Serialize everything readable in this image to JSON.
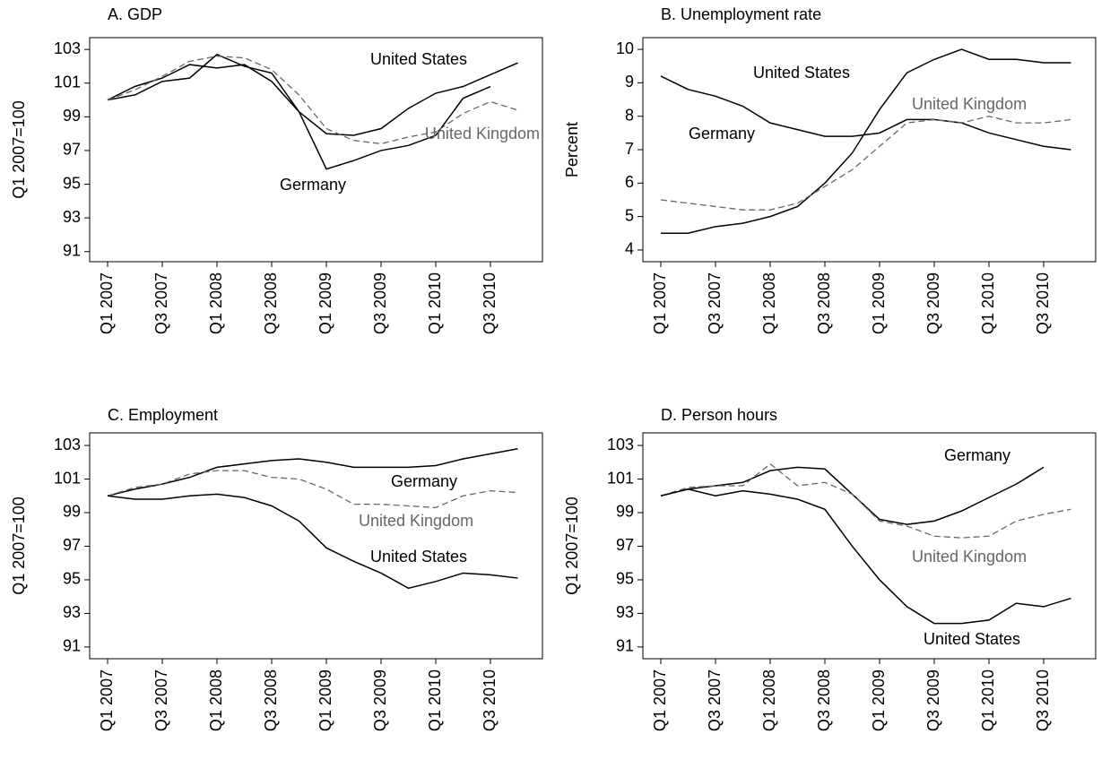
{
  "chart_data": [
    {
      "type": "line",
      "title": "A. GDP",
      "y_label": "Q1 2007=100",
      "categories": [
        "Q1 2007",
        null,
        "Q3 2007",
        null,
        "Q1 2008",
        null,
        "Q3 2008",
        null,
        "Q1 2009",
        null,
        "Q3 2009",
        null,
        "Q1 2010",
        null,
        "Q3 2010",
        null
      ],
      "ylim": [
        90.4,
        103.7
      ],
      "yticks": [
        91,
        93,
        95,
        97,
        99,
        101,
        103
      ],
      "series": [
        {
          "name": "United States",
          "color": "#000000",
          "style": "solid",
          "values": [
            100,
            100.3,
            101.1,
            101.3,
            102.7,
            102.0,
            101.6,
            99.3,
            98.0,
            97.9,
            98.3,
            99.5,
            100.4,
            100.8,
            101.5,
            102.2
          ]
        },
        {
          "name": "Germany",
          "color": "#000000",
          "style": "solid",
          "values": [
            100,
            100.8,
            101.3,
            102.1,
            101.9,
            102.1,
            101.1,
            99.3,
            95.9,
            96.4,
            97.0,
            97.3,
            97.9,
            100.1,
            100.8,
            null
          ]
        },
        {
          "name": "United Kingdom",
          "color": "#666666",
          "style": "dashed",
          "values": [
            100,
            100.6,
            101.4,
            102.3,
            102.6,
            102.5,
            101.8,
            100.3,
            98.3,
            97.6,
            97.4,
            97.8,
            98.1,
            99.2,
            99.9,
            99.4
          ]
        }
      ]
    },
    {
      "type": "line",
      "title": "B. Unemployment rate",
      "y_label": "Percent",
      "categories": [
        "Q1 2007",
        null,
        "Q3 2007",
        null,
        "Q1 2008",
        null,
        "Q3 2008",
        null,
        "Q1 2009",
        null,
        "Q3 2009",
        null,
        "Q1 2010",
        null,
        "Q3 2010",
        null
      ],
      "ylim": [
        3.65,
        10.35
      ],
      "yticks": [
        4,
        5,
        6,
        7,
        8,
        9,
        10
      ],
      "series": [
        {
          "name": "United States",
          "color": "#000000",
          "style": "solid",
          "values": [
            4.5,
            4.5,
            4.7,
            4.8,
            5.0,
            5.3,
            6.0,
            6.9,
            8.2,
            9.3,
            9.7,
            10.0,
            9.7,
            9.7,
            9.6,
            9.6
          ]
        },
        {
          "name": "Germany",
          "color": "#000000",
          "style": "solid",
          "values": [
            9.2,
            8.8,
            8.6,
            8.3,
            7.8,
            7.6,
            7.4,
            7.4,
            7.5,
            7.9,
            7.9,
            7.8,
            7.5,
            7.3,
            7.1,
            7.0
          ]
        },
        {
          "name": "United Kingdom",
          "color": "#666666",
          "style": "dashed",
          "values": [
            5.5,
            5.4,
            5.3,
            5.2,
            5.2,
            5.4,
            5.9,
            6.4,
            7.1,
            7.8,
            7.9,
            7.8,
            8.0,
            7.8,
            7.8,
            7.9
          ]
        }
      ]
    },
    {
      "type": "line",
      "title": "C. Employment",
      "y_label": "Q1 2007=100",
      "categories": [
        "Q1 2007",
        null,
        "Q3 2007",
        null,
        "Q1 2008",
        null,
        "Q3 2008",
        null,
        "Q1 2009",
        null,
        "Q3 2009",
        null,
        "Q1 2010",
        null,
        "Q3 2010",
        null
      ],
      "ylim": [
        90.3,
        103.75
      ],
      "yticks": [
        91,
        93,
        95,
        97,
        99,
        101,
        103
      ],
      "series": [
        {
          "name": "Germany",
          "color": "#000000",
          "style": "solid",
          "values": [
            100,
            100.4,
            100.7,
            101.1,
            101.7,
            101.9,
            102.1,
            102.2,
            102.0,
            101.7,
            101.7,
            101.7,
            101.8,
            102.2,
            102.5,
            102.8
          ]
        },
        {
          "name": "United Kingdom",
          "color": "#666666",
          "style": "dashed",
          "values": [
            100,
            100.5,
            100.7,
            101.3,
            101.5,
            101.5,
            101.1,
            101.0,
            100.4,
            99.5,
            99.5,
            99.4,
            99.3,
            100.0,
            100.3,
            100.2
          ]
        },
        {
          "name": "United States",
          "color": "#000000",
          "style": "solid",
          "values": [
            100,
            99.8,
            99.8,
            100.0,
            100.1,
            99.9,
            99.4,
            98.5,
            96.9,
            96.1,
            95.4,
            94.5,
            94.9,
            95.4,
            95.3,
            95.1
          ]
        }
      ]
    },
    {
      "type": "line",
      "title": "D. Person hours",
      "y_label": "Q1 2007=100",
      "categories": [
        "Q1 2007",
        null,
        "Q3 2007",
        null,
        "Q1 2008",
        null,
        "Q3 2008",
        null,
        "Q1 2009",
        null,
        "Q3 2009",
        null,
        "Q1 2010",
        null,
        "Q3 2010",
        null
      ],
      "ylim": [
        90.3,
        103.75
      ],
      "yticks": [
        91,
        93,
        95,
        97,
        99,
        101,
        103
      ],
      "series": [
        {
          "name": "Germany",
          "color": "#000000",
          "style": "solid",
          "values": [
            100,
            100.4,
            100.6,
            100.8,
            101.5,
            101.7,
            101.6,
            100.1,
            98.6,
            98.3,
            98.5,
            99.1,
            99.9,
            100.7,
            101.7,
            null
          ]
        },
        {
          "name": "United Kingdom",
          "color": "#666666",
          "style": "dashed",
          "values": [
            100,
            100.5,
            100.6,
            100.6,
            101.9,
            100.6,
            100.8,
            100.1,
            98.5,
            98.2,
            97.6,
            97.5,
            97.6,
            98.5,
            98.9,
            99.2
          ]
        },
        {
          "name": "United States",
          "color": "#000000",
          "style": "solid",
          "values": [
            100,
            100.4,
            100.0,
            100.3,
            100.1,
            99.8,
            99.2,
            97.0,
            95.0,
            93.4,
            92.4,
            92.4,
            92.6,
            93.6,
            93.4,
            93.9
          ]
        }
      ]
    }
  ]
}
